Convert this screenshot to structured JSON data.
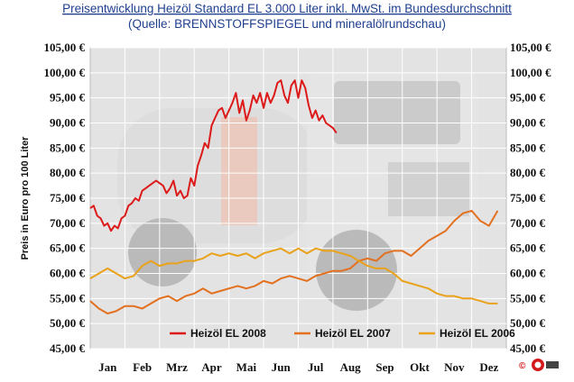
{
  "header": {
    "title": "Preisentwicklung Heizöl Standard EL 3.000 Liter inkl. MwSt. im Bundesdurchschnitt",
    "subtitle": "(Quelle: BRENNSTOFFSPIEGEL und mineralölrundschau)"
  },
  "logo": {
    "symbol": "©"
  },
  "colors": {
    "plot_bg": "#e3e3e3",
    "grid": "#ffffff",
    "title": "#1f3f8f",
    "series_2008": "#dd1a1a",
    "series_2007": "#e2701f",
    "series_2006": "#e9a21a",
    "photo_truck": "#cfcfcf"
  },
  "chart_data": {
    "type": "line",
    "title": "Preisentwicklung Heizöl Standard EL 3.000 Liter inkl. MwSt. im Bundesdurchschnitt",
    "subtitle": "(Quelle: BRENNSTOFFSPIEGEL und mineralölrundschau)",
    "xlabel": "",
    "ylabel": "Preis in Euro pro 100 Liter",
    "categories": [
      "Jan",
      "Feb",
      "Mrz",
      "Apr",
      "Mai",
      "Jun",
      "Jul",
      "Aug",
      "Sep",
      "Okt",
      "Nov",
      "Dez"
    ],
    "ylim": [
      45,
      105
    ],
    "yticks": [
      45,
      50,
      55,
      60,
      65,
      70,
      75,
      80,
      85,
      90,
      95,
      100,
      105
    ],
    "ytick_labels": [
      "45,00 €",
      "50,00 €",
      "55,00 €",
      "60,00 €",
      "65,00 €",
      "70,00 €",
      "75,00 €",
      "80,00 €",
      "85,00 €",
      "90,00 €",
      "95,00 €",
      "100,00 €",
      "105,00 €"
    ],
    "grid": true,
    "legend_position": "bottom",
    "series": [
      {
        "name": "Heizöl EL 2008",
        "x": [
          0.0,
          0.1,
          0.2,
          0.3,
          0.4,
          0.5,
          0.6,
          0.7,
          0.8,
          0.9,
          1.0,
          1.1,
          1.2,
          1.3,
          1.4,
          1.5,
          1.6,
          1.7,
          1.8,
          1.9,
          2.0,
          2.1,
          2.2,
          2.3,
          2.4,
          2.5,
          2.6,
          2.7,
          2.8,
          2.9,
          3.0,
          3.1,
          3.2,
          3.3,
          3.4,
          3.5,
          3.6,
          3.7,
          3.8,
          3.9,
          4.0,
          4.1,
          4.2,
          4.3,
          4.4,
          4.5,
          4.6,
          4.7,
          4.8,
          4.9,
          5.0,
          5.1,
          5.2,
          5.3,
          5.4,
          5.5,
          5.6,
          5.7,
          5.8,
          5.9,
          6.0,
          6.1,
          6.2,
          6.3,
          6.4,
          6.5,
          6.6,
          6.7,
          6.8,
          6.9,
          7.0,
          7.1
        ],
        "values": [
          73.0,
          73.5,
          71.5,
          71.0,
          69.5,
          70.0,
          68.5,
          69.5,
          69.0,
          71.0,
          71.5,
          73.5,
          74.0,
          75.0,
          74.5,
          76.5,
          77.0,
          77.5,
          78.0,
          78.5,
          78.0,
          77.5,
          76.0,
          77.0,
          78.5,
          75.5,
          76.5,
          75.0,
          75.5,
          79.0,
          77.5,
          81.5,
          83.5,
          86.0,
          85.0,
          89.5,
          91.0,
          92.5,
          93.0,
          91.0,
          92.5,
          94.0,
          96.0,
          92.0,
          94.5,
          90.5,
          92.5,
          95.5,
          94.0,
          96.0,
          93.0,
          96.0,
          94.0,
          95.5,
          98.0,
          98.5,
          95.5,
          94.0,
          97.5,
          98.5,
          95.0,
          98.5,
          97.0,
          93.5,
          91.0,
          92.5,
          90.5,
          91.5,
          90.0,
          89.5,
          89.0,
          88.0
        ]
      },
      {
        "name": "Heizöl EL 2007",
        "x": [
          0.0,
          0.25,
          0.5,
          0.75,
          1.0,
          1.25,
          1.5,
          1.75,
          2.0,
          2.25,
          2.5,
          2.75,
          3.0,
          3.25,
          3.5,
          3.75,
          4.0,
          4.25,
          4.5,
          4.75,
          5.0,
          5.25,
          5.5,
          5.75,
          6.0,
          6.25,
          6.5,
          6.75,
          7.0,
          7.25,
          7.5,
          7.75,
          8.0,
          8.25,
          8.5,
          8.75,
          9.0,
          9.25,
          9.5,
          9.75,
          10.0,
          10.25,
          10.5,
          10.75,
          11.0,
          11.25,
          11.5,
          11.75
        ],
        "values": [
          54.5,
          53.0,
          52.0,
          52.5,
          53.5,
          53.5,
          53.0,
          54.0,
          55.0,
          55.5,
          54.5,
          55.5,
          56.0,
          57.0,
          56.0,
          56.5,
          57.0,
          57.5,
          57.0,
          57.5,
          58.5,
          58.0,
          59.0,
          59.5,
          59.0,
          58.5,
          59.5,
          60.0,
          60.5,
          60.5,
          61.0,
          62.5,
          63.0,
          62.5,
          64.0,
          64.5,
          64.5,
          63.5,
          65.0,
          66.5,
          67.5,
          68.5,
          70.5,
          72.0,
          72.5,
          70.5,
          69.5,
          72.5
        ]
      },
      {
        "name": "Heizöl EL 2006",
        "x": [
          0.0,
          0.25,
          0.5,
          0.75,
          1.0,
          1.25,
          1.5,
          1.75,
          2.0,
          2.25,
          2.5,
          2.75,
          3.0,
          3.25,
          3.5,
          3.75,
          4.0,
          4.25,
          4.5,
          4.75,
          5.0,
          5.25,
          5.5,
          5.75,
          6.0,
          6.25,
          6.5,
          6.75,
          7.0,
          7.25,
          7.5,
          7.75,
          8.0,
          8.25,
          8.5,
          8.75,
          9.0,
          9.25,
          9.5,
          9.75,
          10.0,
          10.25,
          10.5,
          10.75,
          11.0,
          11.25,
          11.5,
          11.75
        ],
        "values": [
          59.0,
          60.0,
          61.0,
          60.0,
          59.0,
          59.5,
          61.5,
          62.5,
          61.5,
          62.0,
          62.0,
          62.5,
          62.5,
          63.0,
          64.0,
          63.5,
          64.0,
          63.5,
          64.0,
          63.0,
          64.0,
          64.5,
          65.0,
          64.0,
          65.0,
          64.0,
          65.0,
          64.5,
          64.5,
          64.0,
          63.5,
          62.5,
          61.5,
          61.0,
          61.0,
          60.0,
          58.5,
          58.0,
          57.5,
          57.0,
          56.0,
          55.5,
          55.5,
          55.0,
          55.0,
          54.5,
          54.0,
          54.0
        ]
      }
    ]
  }
}
